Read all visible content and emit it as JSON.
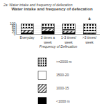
{
  "chart_data": {
    "type": "bar",
    "title": "Water intake and frequency of defecation",
    "subtitle": "2a: Water intake and frequency of defecation",
    "xlabel": "Frequency of Defecation",
    "categories": [
      "Everyday",
      "3 times a\nweek",
      "1-3 times/\nweek",
      ">3 times/\nweek"
    ],
    "series": [
      {
        "name": "<1000 m",
        "color": "black",
        "values": [
          12,
          28,
          10,
          5
        ]
      },
      {
        "name": "1000-15",
        "color": "white",
        "marker": "/",
        "values": [
          28,
          25,
          25,
          10
        ]
      },
      {
        "name": "1500-20",
        "color": "white",
        "values": [
          20,
          10,
          10,
          15
        ]
      },
      {
        "name": ">=2000 m",
        "color": "white",
        "marker": ".",
        "values": [
          40,
          37,
          55,
          70
        ]
      }
    ],
    "stacked": true,
    "ylim": [
      0,
      100
    ],
    "yticks": [
      0,
      20,
      40,
      60,
      80,
      100
    ],
    "grid": true,
    "legend": "bottom",
    "annotations": [
      {
        "text": "+",
        "category": ">3 times/\nweek"
      }
    ]
  }
}
